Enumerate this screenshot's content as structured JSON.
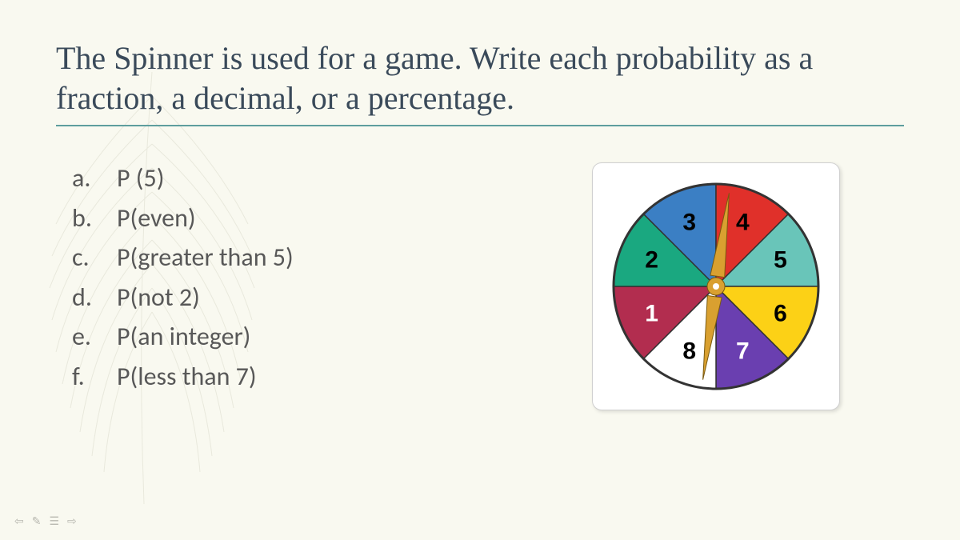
{
  "title": {
    "text": "The Spinner is used for a game. Write each probability as a fraction, a decimal, or a percentage.",
    "color": "#3a4a5a",
    "fontsize": 40
  },
  "underline_color": "#5e9e9e",
  "background_color": "#f9f9f0",
  "questions": {
    "font_color": "#585858",
    "fontsize": 32,
    "items": [
      {
        "letter": "a.",
        "text": "P (5)"
      },
      {
        "letter": "b.",
        "text": "P(even)"
      },
      {
        "letter": "c.",
        "text": "P(greater than 5)"
      },
      {
        "letter": "d.",
        "text": "P(not 2)"
      },
      {
        "letter": "e.",
        "text": "P(an integer)"
      },
      {
        "letter": "f.",
        "text": "P(less than 7)"
      }
    ]
  },
  "spinner": {
    "type": "pie",
    "border_color": "#333333",
    "border_width": 3,
    "sectors": [
      {
        "label": "1",
        "color": "#b22d4f",
        "label_color": "#ffffff"
      },
      {
        "label": "2",
        "color": "#1aa880",
        "label_color": "#000000"
      },
      {
        "label": "3",
        "color": "#3b7fc4",
        "label_color": "#000000"
      },
      {
        "label": "4",
        "color": "#e0302a",
        "label_color": "#000000"
      },
      {
        "label": "5",
        "color": "#69c5b9",
        "label_color": "#000000"
      },
      {
        "label": "6",
        "color": "#fcd116",
        "label_color": "#000000"
      },
      {
        "label": "7",
        "color": "#6a3fb0",
        "label_color": "#ffffff"
      },
      {
        "label": "8",
        "color": "#ffffff",
        "label_color": "#000000"
      }
    ],
    "arrow_color": "#d9a030",
    "arrow_angle_deg": 8
  },
  "nav": {
    "back": "⇦",
    "pen": "✎",
    "menu": "☰",
    "forward": "⇨",
    "color": "#b8b8b0"
  }
}
